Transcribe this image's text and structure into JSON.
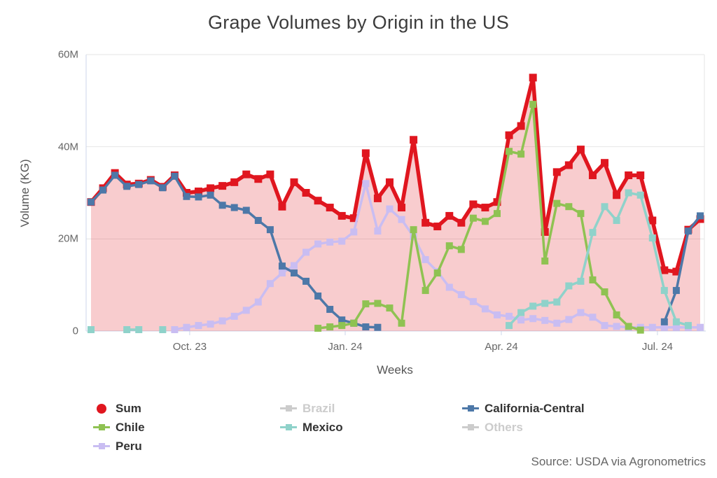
{
  "source": "Source: USDA via Agronometrics",
  "legend": {
    "items": [
      {
        "label": "Sum",
        "color": "#e0161f",
        "marker": "circle",
        "disabled": false
      },
      {
        "label": "Brazil",
        "color": "#cccccc",
        "marker": "line-square",
        "disabled": true
      },
      {
        "label": "California-Central",
        "color": "#4d78a8",
        "marker": "line-square",
        "disabled": false
      },
      {
        "label": "Chile",
        "color": "#8fc252",
        "marker": "line-square",
        "disabled": false
      },
      {
        "label": "Mexico",
        "color": "#8fd2ca",
        "marker": "line-square",
        "disabled": false
      },
      {
        "label": "Others",
        "color": "#cccccc",
        "marker": "line-square",
        "disabled": true
      },
      {
        "label": "Peru",
        "color": "#c9bdf2",
        "marker": "line-square",
        "disabled": false
      }
    ]
  },
  "chart_data": {
    "type": "line",
    "title": "Grape Volumes by Origin in the US",
    "xlabel": "Weeks",
    "ylabel": "Volume (KG)",
    "unit": "KG",
    "values_in": "millions of KG",
    "n_weeks": 52,
    "ylim": [
      0,
      60
    ],
    "grid": "horizontal",
    "legend_position": "bottom",
    "y_ticks": [
      {
        "v": 0,
        "label": "0"
      },
      {
        "v": 20,
        "label": "20M"
      },
      {
        "v": 40,
        "label": "40M"
      },
      {
        "v": 60,
        "label": "60M"
      }
    ],
    "x_ticks": [
      {
        "week": 8.26,
        "label": "Oct. 23"
      },
      {
        "week": 21.28,
        "label": "Jan. 24"
      },
      {
        "week": 34.35,
        "label": "Apr. 24"
      },
      {
        "week": 47.42,
        "label": "Jul. 24"
      }
    ],
    "series": [
      {
        "name": "Sum",
        "color": "#e0161f",
        "visible": true,
        "style": "area-line",
        "line_width": 5.5,
        "marker_size": 11,
        "fill_opacity": 0.22,
        "values": [
          28.0,
          31.0,
          34.3,
          31.8,
          32.0,
          32.8,
          31.3,
          33.8,
          30.0,
          30.3,
          31.0,
          31.5,
          32.3,
          34.0,
          33.0,
          34.0,
          27.0,
          32.3,
          30.0,
          28.3,
          26.8,
          25.0,
          24.5,
          38.6,
          28.8,
          32.3,
          26.8,
          41.5,
          23.5,
          22.7,
          25.0,
          23.5,
          27.5,
          26.8,
          28.0,
          42.5,
          44.5,
          55.0,
          21.5,
          34.5,
          36.0,
          39.4,
          33.8,
          36.5,
          29.5,
          33.8,
          33.8,
          24.0,
          13.2,
          12.9,
          22.0,
          24.3
        ]
      },
      {
        "name": "Brazil",
        "color": "#cccccc",
        "visible": false,
        "style": "line",
        "line_width": 3.5,
        "marker_size": 10,
        "values": null
      },
      {
        "name": "California-Central",
        "color": "#4d78a8",
        "visible": true,
        "style": "line",
        "line_width": 3.5,
        "marker_size": 10,
        "values": [
          28.0,
          30.6,
          33.8,
          31.4,
          31.8,
          32.6,
          31.1,
          33.6,
          29.2,
          29.1,
          29.5,
          27.3,
          26.8,
          26.2,
          24.0,
          22.0,
          14.1,
          12.6,
          10.8,
          7.6,
          4.7,
          2.4,
          1.7,
          0.9,
          0.8,
          null,
          null,
          null,
          null,
          null,
          null,
          null,
          null,
          null,
          null,
          null,
          null,
          null,
          null,
          null,
          null,
          null,
          null,
          null,
          null,
          null,
          null,
          null,
          2.0,
          8.8,
          21.7,
          25.0
        ]
      },
      {
        "name": "Chile",
        "color": "#8fc252",
        "visible": true,
        "style": "line",
        "line_width": 3.5,
        "marker_size": 10,
        "values": [
          null,
          null,
          null,
          null,
          null,
          null,
          null,
          null,
          null,
          null,
          null,
          null,
          null,
          null,
          null,
          null,
          null,
          null,
          null,
          0.6,
          0.9,
          1.2,
          1.7,
          5.9,
          6.0,
          5.0,
          1.7,
          22.0,
          8.8,
          12.6,
          18.5,
          17.7,
          24.5,
          23.8,
          25.5,
          39.0,
          38.4,
          49.2,
          15.2,
          27.7,
          27.0,
          25.5,
          11.1,
          8.5,
          3.5,
          1.0,
          0.2,
          null,
          null,
          null,
          null,
          null
        ]
      },
      {
        "name": "Mexico",
        "color": "#8fd2ca",
        "visible": true,
        "style": "line",
        "line_width": 3.5,
        "marker_size": 10,
        "values": [
          0.3,
          null,
          null,
          0.3,
          0.3,
          null,
          0.3,
          null,
          null,
          null,
          null,
          null,
          null,
          null,
          null,
          null,
          null,
          null,
          null,
          null,
          null,
          null,
          null,
          null,
          null,
          null,
          null,
          null,
          null,
          null,
          null,
          null,
          null,
          null,
          null,
          1.2,
          4.0,
          5.4,
          6.0,
          6.3,
          9.8,
          10.8,
          21.4,
          27.0,
          24.0,
          30.0,
          29.5,
          20.2,
          8.8,
          2.0,
          1.2,
          null
        ]
      },
      {
        "name": "Others",
        "color": "#cccccc",
        "visible": false,
        "style": "line",
        "line_width": 3.5,
        "marker_size": 10,
        "values": null
      },
      {
        "name": "Peru",
        "color": "#c9bdf2",
        "visible": true,
        "style": "line",
        "line_width": 3.5,
        "marker_size": 10,
        "values": [
          null,
          null,
          null,
          null,
          null,
          null,
          null,
          0.3,
          0.8,
          1.2,
          1.5,
          2.2,
          3.2,
          4.5,
          6.3,
          10.3,
          12.6,
          14.2,
          17.1,
          18.9,
          19.3,
          19.5,
          21.5,
          32.0,
          21.7,
          26.5,
          24.2,
          20.5,
          15.5,
          12.9,
          9.5,
          7.9,
          6.4,
          4.8,
          3.5,
          3.2,
          2.4,
          2.7,
          2.3,
          1.7,
          2.5,
          4.0,
          3.0,
          1.2,
          1.0,
          0.8,
          0.8,
          0.8,
          0.8,
          0.8,
          0.8,
          0.8
        ]
      }
    ]
  }
}
